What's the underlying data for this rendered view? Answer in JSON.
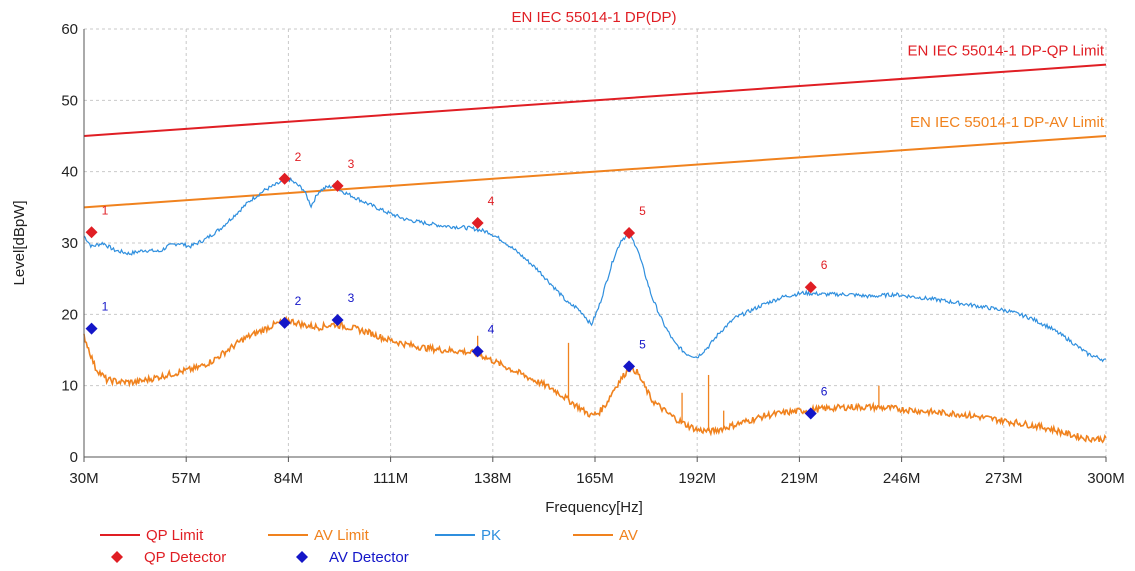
{
  "chart_data": {
    "type": "line",
    "title": "EN IEC 55014-1 DP(DP)",
    "xlabel": "Frequency[Hz]",
    "ylabel": "Level[dBpW]",
    "x_unit": "MHz",
    "xlim": [
      30,
      300
    ],
    "ylim": [
      0,
      60
    ],
    "x_ticks": [
      30,
      57,
      84,
      111,
      138,
      165,
      192,
      219,
      246,
      273,
      300
    ],
    "x_tick_labels": [
      "30M",
      "57M",
      "84M",
      "111M",
      "138M",
      "165M",
      "192M",
      "219M",
      "246M",
      "273M",
      "300M"
    ],
    "y_ticks": [
      0,
      10,
      20,
      30,
      40,
      50,
      60
    ],
    "y_tick_labels": [
      "0",
      "10",
      "20",
      "30",
      "40",
      "50",
      "60"
    ],
    "grid": "dashed",
    "limit_lines": [
      {
        "name": "QP Limit",
        "label": "EN IEC 55014-1 DP-QP Limit",
        "color": "#e01e24",
        "x": [
          30,
          300
        ],
        "y": [
          45,
          55
        ]
      },
      {
        "name": "AV Limit",
        "label": "EN IEC 55014-1 DP-AV Limit",
        "color": "#f0821e",
        "x": [
          30,
          300
        ],
        "y": [
          35,
          45
        ]
      }
    ],
    "series": [
      {
        "name": "PK",
        "color": "#2f8fde",
        "x": [
          30,
          32,
          35,
          38,
          42,
          46,
          50,
          52,
          55,
          58,
          62,
          66,
          70,
          74,
          78,
          80,
          82,
          84,
          86,
          88,
          90,
          92,
          94,
          96,
          98,
          100,
          105,
          110,
          115,
          120,
          125,
          130,
          133,
          137,
          141,
          145,
          150,
          155,
          158,
          160,
          162,
          164,
          166,
          168,
          170,
          172,
          174,
          176,
          178,
          180,
          183,
          186,
          189,
          192,
          195,
          198,
          202,
          206,
          210,
          215,
          220,
          226,
          232,
          238,
          244,
          250,
          256,
          262,
          268,
          274,
          280,
          285,
          290,
          295,
          300
        ],
        "y": [
          31,
          29.5,
          30,
          29,
          28.5,
          29,
          28.8,
          29.5,
          30,
          29.5,
          30.5,
          32,
          34,
          36,
          37.5,
          38,
          38.5,
          39,
          38.3,
          37.5,
          35.2,
          37.2,
          37.8,
          38,
          37.3,
          36.8,
          35.5,
          34.3,
          33.3,
          32.8,
          32.4,
          32.2,
          32,
          31.5,
          30.2,
          28.5,
          26.2,
          23.3,
          21.5,
          21,
          20,
          18.5,
          21,
          24.5,
          28,
          30.5,
          31.2,
          29.5,
          26,
          22.5,
          18.8,
          16,
          14.5,
          14,
          15.5,
          17.5,
          19.5,
          20.5,
          21.5,
          22.5,
          23,
          22.8,
          22.8,
          22.5,
          22.8,
          22.4,
          22,
          21.5,
          21,
          20.5,
          19.5,
          18.2,
          16.5,
          14.5,
          13.5
        ]
      },
      {
        "name": "AV",
        "color": "#f0821e",
        "x": [
          30,
          31,
          33,
          36,
          40,
          44,
          48,
          52,
          56,
          60,
          64,
          68,
          72,
          76,
          80,
          84,
          88,
          92,
          96,
          100,
          105,
          110,
          115,
          120,
          125,
          130,
          134,
          138,
          142,
          146,
          150,
          154,
          158,
          162,
          164,
          166,
          168,
          170,
          172,
          174,
          176,
          178,
          180,
          184,
          188,
          192,
          196,
          200,
          205,
          210,
          215,
          220,
          226,
          232,
          238,
          244,
          250,
          256,
          262,
          268,
          274,
          280,
          285,
          290,
          295,
          300
        ],
        "y": [
          17,
          15.5,
          12.5,
          10.8,
          10.5,
          10.5,
          11,
          11.5,
          12,
          12.5,
          13.5,
          15,
          16.5,
          17.5,
          18.5,
          19.2,
          18.5,
          18.2,
          18.6,
          18.2,
          17.5,
          16.5,
          15.8,
          15.3,
          15,
          14.8,
          14.5,
          13.5,
          12.5,
          11.5,
          10.5,
          9.5,
          8,
          6.5,
          5.8,
          6.2,
          7.5,
          9.5,
          11,
          12.5,
          12,
          10,
          8,
          6.2,
          4.8,
          3.8,
          3.6,
          4.2,
          5,
          5.8,
          6.2,
          6.5,
          6.8,
          7,
          7,
          6.8,
          6.5,
          6.2,
          6,
          5.5,
          5,
          4.5,
          4,
          3.2,
          2.6,
          2.5
        ]
      }
    ],
    "spikes": [
      {
        "x": 134,
        "y": 17
      },
      {
        "x": 158,
        "y": 16
      },
      {
        "x": 188,
        "y": 9
      },
      {
        "x": 195,
        "y": 11.5
      },
      {
        "x": 199,
        "y": 6.5
      },
      {
        "x": 240,
        "y": 10
      }
    ],
    "qp_detector": {
      "name": "QP Detector",
      "color": "#e01e24",
      "points": [
        {
          "id": "1",
          "x": 32,
          "y": 31.5
        },
        {
          "id": "2",
          "x": 83,
          "y": 39
        },
        {
          "id": "3",
          "x": 97,
          "y": 38
        },
        {
          "id": "4",
          "x": 134,
          "y": 32.8
        },
        {
          "id": "5",
          "x": 174,
          "y": 31.4
        },
        {
          "id": "6",
          "x": 222,
          "y": 23.8
        }
      ]
    },
    "av_detector": {
      "name": "AV Detector",
      "color": "#1416c8",
      "points": [
        {
          "id": "1",
          "x": 32,
          "y": 18
        },
        {
          "id": "2",
          "x": 83,
          "y": 18.8
        },
        {
          "id": "3",
          "x": 97,
          "y": 19.2
        },
        {
          "id": "4",
          "x": 134,
          "y": 14.8
        },
        {
          "id": "5",
          "x": 174,
          "y": 12.7
        },
        {
          "id": "6",
          "x": 222,
          "y": 6.1
        }
      ]
    },
    "legend": {
      "placement": "bottom",
      "entries": [
        {
          "label": "QP Limit",
          "kind": "line",
          "color": "#e01e24"
        },
        {
          "label": "AV Limit",
          "kind": "line",
          "color": "#f0821e"
        },
        {
          "label": "PK",
          "kind": "line",
          "color": "#2f8fde"
        },
        {
          "label": "AV",
          "kind": "line",
          "color": "#f0821e"
        },
        {
          "label": "QP Detector",
          "kind": "diamond",
          "color": "#e01e24"
        },
        {
          "label": "AV Detector",
          "kind": "diamond",
          "color": "#1416c8"
        }
      ]
    }
  }
}
